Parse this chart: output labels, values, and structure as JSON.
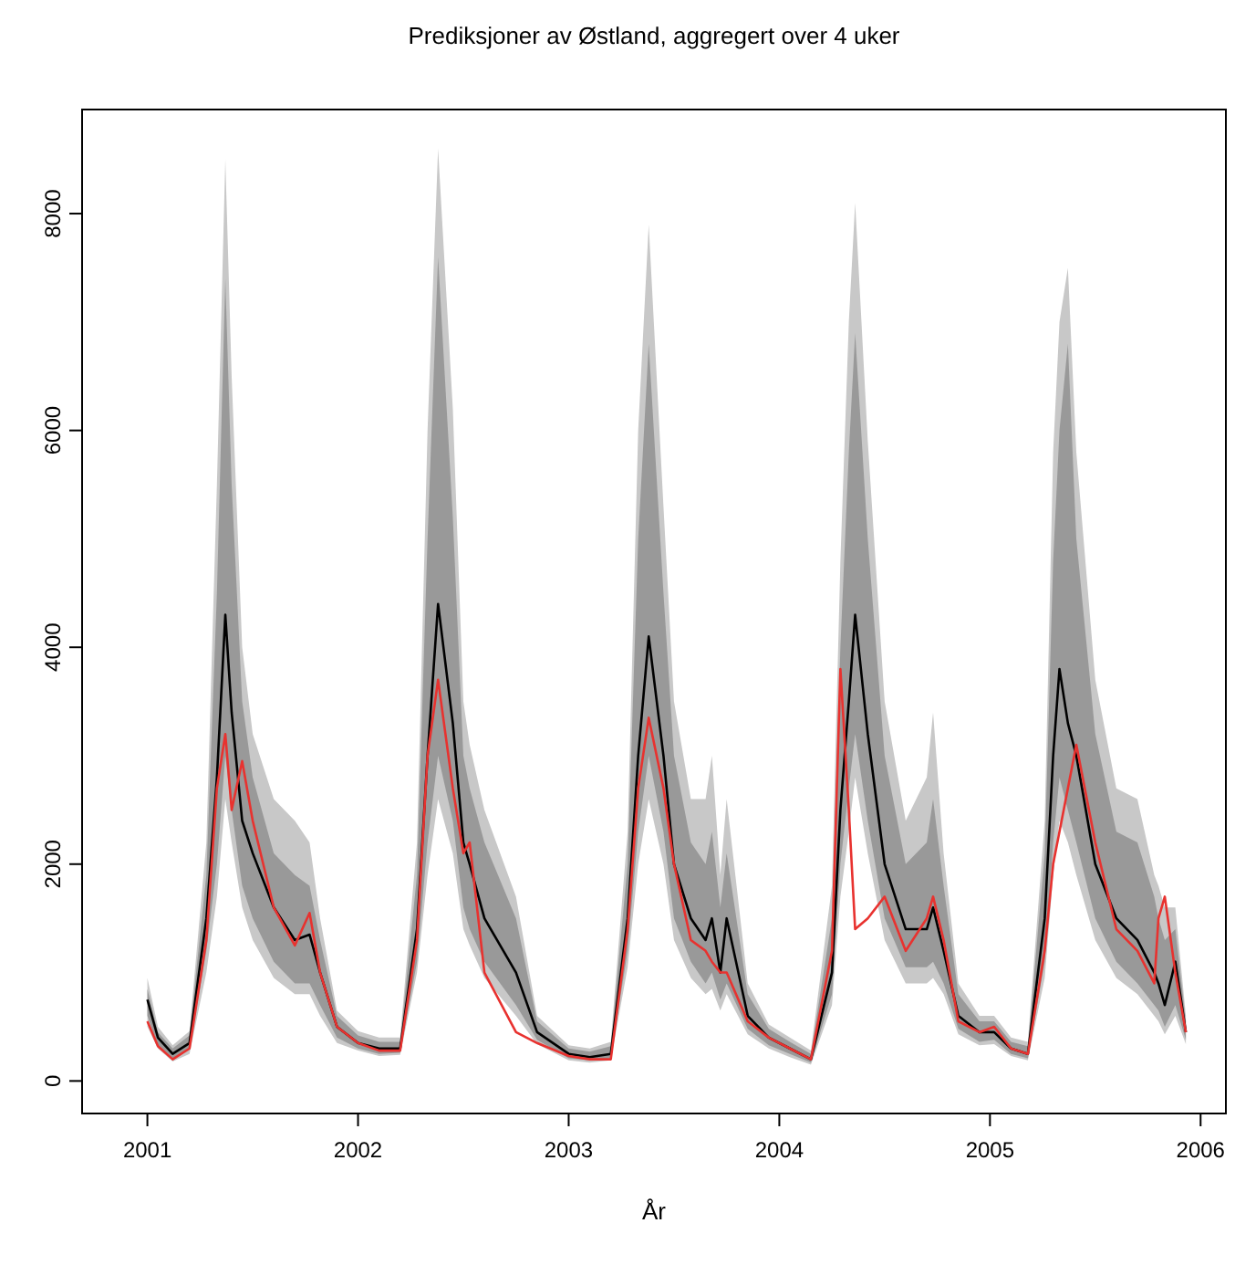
{
  "chart_data": {
    "type": "line",
    "title": "Prediksjoner av Østland, aggregert over 4 uker",
    "xlabel": "År",
    "x": [
      2001.0,
      2001.05,
      2001.12,
      2001.2,
      2001.28,
      2001.33,
      2001.37,
      2001.4,
      2001.45,
      2001.5,
      2001.6,
      2001.7,
      2001.77,
      2001.82,
      2001.9,
      2002.0,
      2002.1,
      2002.2,
      2002.28,
      2002.33,
      2002.38,
      2002.45,
      2002.5,
      2002.53,
      2002.6,
      2002.75,
      2002.85,
      2003.0,
      2003.1,
      2003.2,
      2003.28,
      2003.33,
      2003.38,
      2003.45,
      2003.5,
      2003.58,
      2003.65,
      2003.68,
      2003.72,
      2003.75,
      2003.85,
      2003.95,
      2004.05,
      2004.15,
      2004.25,
      2004.29,
      2004.33,
      2004.36,
      2004.42,
      2004.5,
      2004.6,
      2004.7,
      2004.73,
      2004.78,
      2004.85,
      2004.95,
      2005.02,
      2005.1,
      2005.18,
      2005.26,
      2005.3,
      2005.33,
      2005.37,
      2005.41,
      2005.5,
      2005.6,
      2005.7,
      2005.78,
      2005.8,
      2005.83,
      2005.88,
      2005.93
    ],
    "series": [
      {
        "color": "#c8c8c8",
        "values": [
          null,
          null,
          null,
          null,
          null,
          null,
          null,
          null,
          null,
          null,
          null,
          null,
          null,
          null,
          null,
          null,
          null,
          null,
          null,
          null,
          null,
          null,
          null,
          null,
          null,
          null,
          null,
          null,
          null,
          null,
          null,
          null,
          null,
          null,
          null,
          null,
          null,
          null,
          null,
          null,
          null,
          null,
          null,
          null,
          null,
          null,
          null,
          null,
          null,
          null,
          null,
          null,
          null,
          null,
          null,
          null,
          null,
          null,
          null,
          null,
          null,
          null,
          null,
          null,
          null,
          null,
          null,
          null,
          null,
          null,
          null,
          null
        ],
        "lower": [
          500,
          300,
          180,
          250,
          1000,
          1700,
          2600,
          2200,
          1600,
          1300,
          950,
          800,
          800,
          600,
          350,
          280,
          230,
          240,
          1000,
          1900,
          2600,
          2100,
          1400,
          1250,
          950,
          600,
          340,
          190,
          170,
          190,
          1050,
          2000,
          2600,
          2000,
          1300,
          950,
          800,
          850,
          650,
          800,
          430,
          300,
          220,
          150,
          700,
          1700,
          2300,
          2800,
          2100,
          1300,
          900,
          900,
          950,
          800,
          430,
          330,
          340,
          230,
          190,
          950,
          1900,
          2400,
          2200,
          1900,
          1300,
          950,
          800,
          600,
          550,
          430,
          600,
          340
        ],
        "upper": [
          950,
          500,
          330,
          460,
          2200,
          5500,
          8500,
          6500,
          4000,
          3200,
          2600,
          2400,
          2200,
          1500,
          650,
          460,
          400,
          400,
          2200,
          6000,
          8600,
          6200,
          3500,
          3100,
          2500,
          1700,
          600,
          330,
          300,
          360,
          2300,
          6000,
          7900,
          5300,
          3500,
          2600,
          2600,
          3000,
          1900,
          2600,
          900,
          520,
          400,
          280,
          1800,
          4800,
          7000,
          8100,
          5900,
          3500,
          2400,
          2800,
          3400,
          2100,
          900,
          600,
          600,
          400,
          360,
          2400,
          5800,
          7000,
          7500,
          5800,
          3700,
          2700,
          2600,
          1900,
          1800,
          1600,
          1600,
          600
        ]
      },
      {
        "color": "#999999",
        "values": [
          null,
          null,
          null,
          null,
          null,
          null,
          null,
          null,
          null,
          null,
          null,
          null,
          null,
          null,
          null,
          null,
          null,
          null,
          null,
          null,
          null,
          null,
          null,
          null,
          null,
          null,
          null,
          null,
          null,
          null,
          null,
          null,
          null,
          null,
          null,
          null,
          null,
          null,
          null,
          null,
          null,
          null,
          null,
          null,
          null,
          null,
          null,
          null,
          null,
          null,
          null,
          null,
          null,
          null,
          null,
          null,
          null,
          null,
          null,
          null,
          null,
          null,
          null,
          null,
          null,
          null,
          null,
          null,
          null,
          null,
          null,
          null
        ],
        "lower": [
          600,
          330,
          210,
          290,
          1200,
          2000,
          3000,
          2500,
          1800,
          1500,
          1100,
          900,
          900,
          700,
          400,
          300,
          250,
          260,
          1100,
          2200,
          3000,
          2400,
          1600,
          1400,
          1100,
          700,
          380,
          210,
          190,
          210,
          1200,
          2300,
          3000,
          2300,
          1500,
          1100,
          900,
          1000,
          750,
          900,
          480,
          330,
          250,
          170,
          800,
          2000,
          2700,
          3200,
          2400,
          1500,
          1050,
          1050,
          1100,
          900,
          480,
          360,
          380,
          250,
          210,
          1100,
          2200,
          2800,
          2500,
          2200,
          1500,
          1100,
          900,
          700,
          650,
          500,
          700,
          380
        ],
        "upper": [
          850,
          450,
          300,
          420,
          1900,
          4500,
          7400,
          5500,
          3500,
          2800,
          2100,
          1900,
          1800,
          1300,
          600,
          420,
          360,
          360,
          1900,
          5000,
          7600,
          5200,
          3000,
          2700,
          2200,
          1500,
          550,
          300,
          270,
          320,
          2000,
          5000,
          6800,
          4500,
          3000,
          2200,
          2000,
          2300,
          1600,
          2100,
          800,
          480,
          360,
          250,
          1500,
          4000,
          5800,
          6900,
          5000,
          3000,
          2000,
          2200,
          2600,
          1800,
          800,
          550,
          550,
          360,
          320,
          2100,
          4800,
          6000,
          6800,
          5000,
          3200,
          2300,
          2200,
          1700,
          1500,
          1300,
          1400,
          550
        ]
      },
      {
        "color": "#000000",
        "values": [
          750,
          400,
          250,
          350,
          1500,
          2800,
          4300,
          3400,
          2400,
          2100,
          1600,
          1300,
          1350,
          1000,
          500,
          350,
          300,
          300,
          1400,
          3000,
          4400,
          3300,
          2200,
          2000,
          1500,
          1000,
          450,
          250,
          220,
          250,
          1500,
          3000,
          4100,
          3000,
          2000,
          1500,
          1300,
          1500,
          1000,
          1500,
          600,
          400,
          300,
          200,
          1000,
          2500,
          3500,
          4300,
          3200,
          2000,
          1400,
          1400,
          1600,
          1200,
          600,
          450,
          450,
          300,
          250,
          1500,
          3000,
          3800,
          3300,
          3000,
          2000,
          1500,
          1300,
          1000,
          900,
          700,
          1100,
          450
        ]
      },
      {
        "color": "#e8322f",
        "values": [
          550,
          320,
          200,
          300,
          1300,
          2700,
          3200,
          2500,
          2950,
          2400,
          1600,
          1250,
          1550,
          1000,
          500,
          350,
          280,
          280,
          1300,
          3000,
          3700,
          2700,
          2100,
          2200,
          1000,
          450,
          350,
          230,
          200,
          200,
          1400,
          2700,
          3350,
          2700,
          2000,
          1300,
          1200,
          1100,
          1000,
          1000,
          550,
          400,
          300,
          200,
          1200,
          3800,
          2500,
          1400,
          1500,
          1700,
          1200,
          1500,
          1700,
          1300,
          550,
          450,
          500,
          300,
          250,
          1200,
          2000,
          2300,
          2700,
          3100,
          2200,
          1400,
          1200,
          900,
          1500,
          1700,
          1000,
          450
        ]
      }
    ],
    "xlim": [
      2000.69,
      2006.12
    ],
    "xticks": [
      2001,
      2002,
      2003,
      2004,
      2005,
      2006
    ],
    "ylim": [
      -300,
      8960
    ],
    "yticks": [
      0,
      2000,
      4000,
      6000,
      8000
    ],
    "line_style": "solid"
  }
}
